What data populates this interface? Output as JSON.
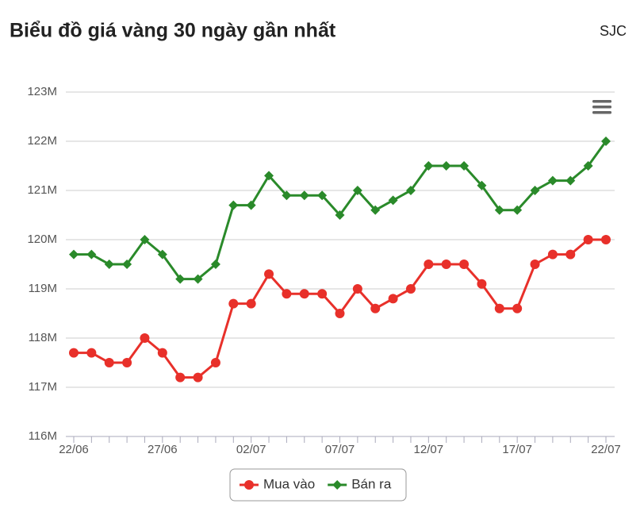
{
  "chart_data": {
    "type": "line",
    "title": "Biểu đồ giá vàng 30 ngày gần nhất",
    "subtitle": "SJC",
    "categories": [
      "22/06",
      null,
      null,
      null,
      null,
      "27/06",
      null,
      null,
      null,
      null,
      "02/07",
      null,
      null,
      null,
      null,
      "07/07",
      null,
      null,
      null,
      null,
      "12/07",
      null,
      null,
      null,
      null,
      "17/07",
      null,
      null,
      null,
      null,
      "22/07"
    ],
    "series": [
      {
        "name": "Mua vào",
        "color": "#e8302a",
        "marker": "circle",
        "values": [
          117.7,
          117.7,
          117.5,
          117.5,
          118.0,
          117.7,
          117.2,
          117.2,
          117.5,
          118.7,
          118.7,
          119.3,
          118.9,
          118.9,
          118.9,
          118.5,
          119.0,
          118.6,
          118.8,
          119.0,
          119.5,
          119.5,
          119.5,
          119.1,
          118.6,
          118.6,
          119.5,
          119.7,
          119.7,
          120.0,
          120.0
        ]
      },
      {
        "name": "Bán ra",
        "color": "#2a8a2a",
        "marker": "diamond",
        "values": [
          119.7,
          119.7,
          119.5,
          119.5,
          120.0,
          119.7,
          119.2,
          119.2,
          119.5,
          120.7,
          120.7,
          121.3,
          120.9,
          120.9,
          120.9,
          120.5,
          121.0,
          120.6,
          120.8,
          121.0,
          121.5,
          121.5,
          121.5,
          121.1,
          120.6,
          120.6,
          121.0,
          121.2,
          121.2,
          121.5,
          122.0
        ]
      }
    ],
    "ylim": [
      116,
      123
    ],
    "yticks": [
      {
        "value": 116,
        "label": "116M"
      },
      {
        "value": 117,
        "label": "117M"
      },
      {
        "value": 118,
        "label": "118M"
      },
      {
        "value": 119,
        "label": "119M"
      },
      {
        "value": 120,
        "label": "120M"
      },
      {
        "value": 121,
        "label": "121M"
      },
      {
        "value": 122,
        "label": "122M"
      },
      {
        "value": 123,
        "label": "123M"
      }
    ],
    "grid": true,
    "legend": "bottom"
  }
}
